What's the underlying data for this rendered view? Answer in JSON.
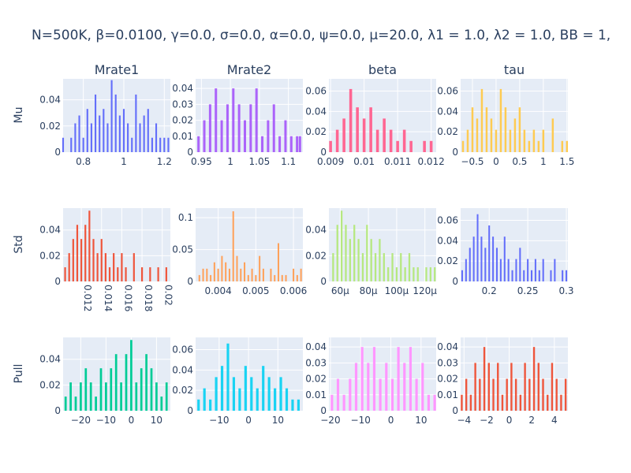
{
  "title": "N=500K, β=0.0100, γ=0.0, σ=0.0,  α=0.0, ψ=0.0, μ=20.0, λ1 = 1.0, λ2 = 1.0, BB = 1,",
  "columns": [
    "Mrate1",
    "Mrate2",
    "beta",
    "tau"
  ],
  "rows": [
    "Mu",
    "Std",
    "Pull"
  ],
  "chart_data": [
    {
      "type": "bar",
      "subplot": "Mu / Mrate1",
      "color": "#636efa",
      "xlim": [
        0.7,
        1.23
      ],
      "ylim": [
        0,
        0.056
      ],
      "xticks": [
        0.8,
        1,
        1.2
      ],
      "xticklabels": [
        "0.8",
        "1",
        "1.2"
      ],
      "yticks": [
        0,
        0.02,
        0.04
      ],
      "yticklabels": [
        "0",
        "0.02",
        "0.04"
      ],
      "x": [
        0.7,
        0.72,
        0.74,
        0.76,
        0.78,
        0.8,
        0.82,
        0.84,
        0.86,
        0.88,
        0.9,
        0.92,
        0.94,
        0.96,
        0.98,
        1.0,
        1.02,
        1.04,
        1.06,
        1.08,
        1.1,
        1.12,
        1.14,
        1.16,
        1.18,
        1.2,
        1.22
      ],
      "values": [
        0.011,
        0,
        0.011,
        0.022,
        0.028,
        0.011,
        0.033,
        0.022,
        0.044,
        0.028,
        0.033,
        0.022,
        0.055,
        0.044,
        0.028,
        0.033,
        0.022,
        0.011,
        0.044,
        0.022,
        0.028,
        0.033,
        0.011,
        0.022,
        0.011,
        0.011,
        0.011
      ]
    },
    {
      "type": "bar",
      "subplot": "Mu / Mrate2",
      "color": "#ab63fa",
      "xlim": [
        0.94,
        1.125
      ],
      "ylim": [
        0,
        0.046
      ],
      "xticks": [
        0.95,
        1,
        1.05,
        1.1
      ],
      "xticklabels": [
        "0.95",
        "1",
        "1.05",
        "1.1"
      ],
      "yticks": [
        0,
        0.01,
        0.02,
        0.03,
        0.04
      ],
      "yticklabels": [
        "0",
        "0.01",
        "0.02",
        "0.03",
        "0.04"
      ],
      "x": [
        0.945,
        0.955,
        0.965,
        0.975,
        0.985,
        0.995,
        1.005,
        1.015,
        1.025,
        1.035,
        1.045,
        1.055,
        1.065,
        1.075,
        1.085,
        1.095,
        1.105,
        1.115,
        1.12
      ],
      "values": [
        0.01,
        0.02,
        0.03,
        0.04,
        0.02,
        0.03,
        0.04,
        0.03,
        0.02,
        0.03,
        0.04,
        0.01,
        0.02,
        0.03,
        0.01,
        0.02,
        0.01,
        0.01,
        0.01
      ]
    },
    {
      "type": "bar",
      "subplot": "Mu / beta",
      "color": "#ff6692",
      "xlim": [
        0.00895,
        0.01215
      ],
      "ylim": [
        0,
        0.072
      ],
      "xticks": [
        0.009,
        0.01,
        0.011,
        0.012
      ],
      "xticklabels": [
        "0.009",
        "0.01",
        "0.011",
        "0.012"
      ],
      "yticks": [
        0,
        0.02,
        0.04,
        0.06
      ],
      "yticklabels": [
        "0",
        "0.02",
        "0.04",
        "0.06"
      ],
      "x": [
        0.009,
        0.0092,
        0.0094,
        0.0096,
        0.0098,
        0.01,
        0.0102,
        0.0104,
        0.0106,
        0.0108,
        0.011,
        0.0112,
        0.0114,
        0.0116,
        0.0118,
        0.012
      ],
      "values": [
        0.011,
        0.022,
        0.033,
        0.062,
        0.044,
        0.033,
        0.044,
        0.022,
        0.033,
        0.022,
        0.011,
        0.022,
        0.011,
        0,
        0.011,
        0.011
      ]
    },
    {
      "type": "bar",
      "subplot": "Mu / tau",
      "color": "#fecb52",
      "xlim": [
        -0.75,
        1.52
      ],
      "ylim": [
        0,
        0.072
      ],
      "xticks": [
        -0.5,
        0,
        0.5,
        1,
        1.5
      ],
      "xticklabels": [
        "−0.5",
        "0",
        "0.5",
        "1",
        "1.5"
      ],
      "yticks": [
        0,
        0.02,
        0.04,
        0.06
      ],
      "yticklabels": [
        "0",
        "0.02",
        "0.04",
        "0.06"
      ],
      "x": [
        -0.7,
        -0.6,
        -0.5,
        -0.4,
        -0.3,
        -0.2,
        -0.1,
        0,
        0.1,
        0.2,
        0.3,
        0.4,
        0.5,
        0.6,
        0.7,
        0.8,
        0.9,
        1.0,
        1.1,
        1.2,
        1.3,
        1.4,
        1.5
      ],
      "values": [
        0.011,
        0.022,
        0.044,
        0.033,
        0.062,
        0.044,
        0.033,
        0.022,
        0.062,
        0.044,
        0.022,
        0.033,
        0.044,
        0.022,
        0.011,
        0.022,
        0.011,
        0.022,
        0,
        0.033,
        0,
        0.011,
        0.011
      ]
    },
    {
      "type": "bar",
      "subplot": "Std / Mrate1",
      "color": "#ef553b",
      "xlim": [
        0.0102,
        0.0208
      ],
      "ylim": [
        0,
        0.057
      ],
      "xticks": [
        0.012,
        0.014,
        0.016,
        0.018,
        0.02
      ],
      "xticklabels": [
        "0.012",
        "0.014",
        "0.016",
        "0.018",
        "0.02"
      ],
      "yticks": [
        0,
        0.02,
        0.04
      ],
      "yticklabels": [
        "0",
        "0.02",
        "0.04"
      ],
      "xtickangle": 90,
      "x": [
        0.0104,
        0.0108,
        0.0112,
        0.0116,
        0.012,
        0.0124,
        0.0128,
        0.0132,
        0.0136,
        0.014,
        0.0144,
        0.0148,
        0.0152,
        0.0156,
        0.016,
        0.0164,
        0.0168,
        0.0172,
        0.0176,
        0.018,
        0.0184,
        0.0188,
        0.0192,
        0.0196,
        0.02,
        0.0204
      ],
      "values": [
        0.011,
        0.022,
        0.033,
        0.044,
        0.033,
        0.044,
        0.055,
        0.033,
        0.022,
        0.033,
        0.022,
        0.011,
        0.022,
        0.011,
        0.022,
        0.011,
        0,
        0.022,
        0,
        0.011,
        0,
        0.011,
        0,
        0.011,
        0,
        0.011
      ]
    },
    {
      "type": "bar",
      "subplot": "Std / Mrate2",
      "color": "#ffa15a",
      "xlim": [
        0.0034,
        0.00625
      ],
      "ylim": [
        0,
        0.115
      ],
      "xticks": [
        0.004,
        0.005,
        0.006
      ],
      "xticklabels": [
        "0.004",
        "0.005",
        "0.006"
      ],
      "yticks": [
        0,
        0.05,
        0.1
      ],
      "yticklabels": [
        "0",
        "0.05",
        "0.1"
      ],
      "x": [
        0.0035,
        0.0036,
        0.0037,
        0.0038,
        0.0039,
        0.004,
        0.0041,
        0.0042,
        0.0043,
        0.0044,
        0.0045,
        0.0046,
        0.0047,
        0.0048,
        0.0049,
        0.005,
        0.0051,
        0.0052,
        0.0053,
        0.0054,
        0.0055,
        0.0056,
        0.0057,
        0.0058,
        0.0059,
        0.006,
        0.0061,
        0.0062
      ],
      "values": [
        0.01,
        0.02,
        0.02,
        0.01,
        0.03,
        0.02,
        0.04,
        0.03,
        0.02,
        0.11,
        0.04,
        0.02,
        0.03,
        0.01,
        0.02,
        0.01,
        0.04,
        0.02,
        0,
        0.02,
        0.01,
        0.06,
        0.01,
        0.01,
        0,
        0.02,
        0.01,
        0.02
      ]
    },
    {
      "type": "bar",
      "subplot": "Std / beta",
      "color": "#b6e880",
      "xlim": [
        5.2e-05,
        0.000128
      ],
      "ylim": [
        0,
        0.057
      ],
      "xticks": [
        6e-05,
        8e-05,
        0.0001,
        0.00012
      ],
      "xticklabels": [
        "60μ",
        "80μ",
        "100μ",
        "120μ"
      ],
      "yticks": [
        0,
        0.02,
        0.04
      ],
      "yticklabels": [
        "0",
        "0.02",
        "0.04"
      ],
      "x": [
        5.5e-05,
        5.8e-05,
        6.1e-05,
        6.4e-05,
        6.7e-05,
        7e-05,
        7.3e-05,
        7.6e-05,
        7.9e-05,
        8.2e-05,
        8.5e-05,
        8.8e-05,
        9.1e-05,
        9.4e-05,
        9.7e-05,
        0.0001,
        0.000103,
        0.000106,
        0.000109,
        0.000112,
        0.000115,
        0.000118,
        0.000121,
        0.000124,
        0.000127
      ],
      "values": [
        0.022,
        0.044,
        0.055,
        0.044,
        0.033,
        0.044,
        0.033,
        0.022,
        0.044,
        0.033,
        0.022,
        0.033,
        0.022,
        0.011,
        0.022,
        0.011,
        0.022,
        0.011,
        0.022,
        0.011,
        0.011,
        0,
        0.011,
        0.011,
        0.011
      ]
    },
    {
      "type": "bar",
      "subplot": "Std / tau",
      "color": "#636efa",
      "xlim": [
        0.163,
        0.302
      ],
      "ylim": [
        0,
        0.072
      ],
      "xticks": [
        0.2,
        0.25,
        0.3
      ],
      "xticklabels": [
        "0.2",
        "0.25",
        "0.3"
      ],
      "yticks": [
        0,
        0.02,
        0.04,
        0.06
      ],
      "yticklabels": [
        "0",
        "0.02",
        "0.04",
        "0.06"
      ],
      "x": [
        0.165,
        0.17,
        0.175,
        0.18,
        0.185,
        0.19,
        0.195,
        0.2,
        0.205,
        0.21,
        0.215,
        0.22,
        0.225,
        0.23,
        0.235,
        0.24,
        0.245,
        0.25,
        0.255,
        0.26,
        0.265,
        0.27,
        0.275,
        0.28,
        0.285,
        0.29,
        0.295,
        0.3
      ],
      "values": [
        0.011,
        0.022,
        0.033,
        0.044,
        0.066,
        0.044,
        0.033,
        0.055,
        0.044,
        0.033,
        0.022,
        0.044,
        0.022,
        0.011,
        0.022,
        0.033,
        0.011,
        0.022,
        0.011,
        0.022,
        0.011,
        0.022,
        0,
        0.011,
        0.022,
        0,
        0.011,
        0.011
      ]
    },
    {
      "type": "bar",
      "subplot": "Pull / Mrate1",
      "color": "#00cc96",
      "xlim": [
        -27,
        15.5
      ],
      "ylim": [
        0,
        0.057
      ],
      "xticks": [
        -20,
        -10,
        0,
        10
      ],
      "xticklabels": [
        "−20",
        "−10",
        "0",
        "10"
      ],
      "yticks": [
        0,
        0.02,
        0.04
      ],
      "yticklabels": [
        "0",
        "0.02",
        "0.04"
      ],
      "x": [
        -26,
        -24,
        -22,
        -20,
        -18,
        -16,
        -14,
        -12,
        -10,
        -8,
        -6,
        -4,
        -2,
        0,
        2,
        4,
        6,
        8,
        10,
        12,
        14
      ],
      "values": [
        0.011,
        0.022,
        0.011,
        0.022,
        0.033,
        0.022,
        0.011,
        0.033,
        0.022,
        0.033,
        0.044,
        0.022,
        0.044,
        0.055,
        0.022,
        0.033,
        0.044,
        0.033,
        0.022,
        0.011,
        0.022
      ]
    },
    {
      "type": "bar",
      "subplot": "Pull / Mrate2",
      "color": "#19d3f3",
      "xlim": [
        -18,
        18.5
      ],
      "ylim": [
        0,
        0.072
      ],
      "xticks": [
        -10,
        0,
        10
      ],
      "xticklabels": [
        "−10",
        "0",
        "10"
      ],
      "yticks": [
        0,
        0.02,
        0.04,
        0.06
      ],
      "yticklabels": [
        "0",
        "0.02",
        "0.04",
        "0.06"
      ],
      "x": [
        -17,
        -15,
        -13,
        -11,
        -9,
        -7,
        -5,
        -3,
        -1,
        1,
        3,
        5,
        7,
        9,
        11,
        13,
        15,
        17
      ],
      "values": [
        0.011,
        0.022,
        0.011,
        0.033,
        0.044,
        0.066,
        0.033,
        0.022,
        0.044,
        0.033,
        0.022,
        0.044,
        0.033,
        0.022,
        0.033,
        0.022,
        0.011,
        0.011
      ]
    },
    {
      "type": "bar",
      "subplot": "Pull / beta",
      "color": "#ff97ff",
      "xlim": [
        -20.5,
        15
      ],
      "ylim": [
        0,
        0.046
      ],
      "xticks": [
        -20,
        -10,
        0,
        10
      ],
      "xticklabels": [
        "−20",
        "−10",
        "0",
        "10"
      ],
      "yticks": [
        0,
        0.01,
        0.02,
        0.03,
        0.04
      ],
      "yticklabels": [
        "0",
        "0.01",
        "0.02",
        "0.03",
        "0.04"
      ],
      "x": [
        -19.5,
        -17.5,
        -15.5,
        -13.5,
        -11.5,
        -9.5,
        -7.5,
        -5.5,
        -3.5,
        -1.5,
        0.5,
        2.5,
        4.5,
        6.5,
        8.5,
        10.5,
        12.5,
        14.5
      ],
      "values": [
        0.01,
        0.02,
        0.01,
        0.02,
        0.03,
        0.04,
        0.03,
        0.04,
        0.02,
        0.03,
        0.02,
        0.04,
        0.03,
        0.04,
        0.02,
        0.03,
        0.01,
        0.01
      ]
    },
    {
      "type": "bar",
      "subplot": "Pull / tau",
      "color": "#ef553b",
      "xlim": [
        -4.3,
        5.2
      ],
      "ylim": [
        0,
        0.046
      ],
      "xticks": [
        -4,
        -2,
        0,
        2,
        4
      ],
      "xticklabels": [
        "−4",
        "−2",
        "0",
        "2",
        "4"
      ],
      "yticks": [
        0,
        0.01,
        0.02,
        0.03,
        0.04
      ],
      "yticklabels": [
        "0",
        "0.01",
        "0.02",
        "0.03",
        "0.04"
      ],
      "x": [
        -4.2,
        -3.8,
        -3.4,
        -3.0,
        -2.6,
        -2.2,
        -1.8,
        -1.4,
        -1.0,
        -0.6,
        -0.2,
        0.2,
        0.6,
        1.0,
        1.4,
        1.8,
        2.2,
        2.6,
        3.0,
        3.4,
        3.8,
        4.2,
        4.6,
        5.0
      ],
      "values": [
        0.01,
        0.02,
        0.01,
        0.03,
        0.02,
        0.04,
        0.03,
        0.02,
        0.03,
        0.01,
        0.02,
        0.03,
        0.02,
        0.01,
        0.03,
        0.02,
        0.04,
        0.03,
        0.02,
        0.01,
        0.03,
        0.02,
        0.01,
        0.02
      ]
    }
  ]
}
